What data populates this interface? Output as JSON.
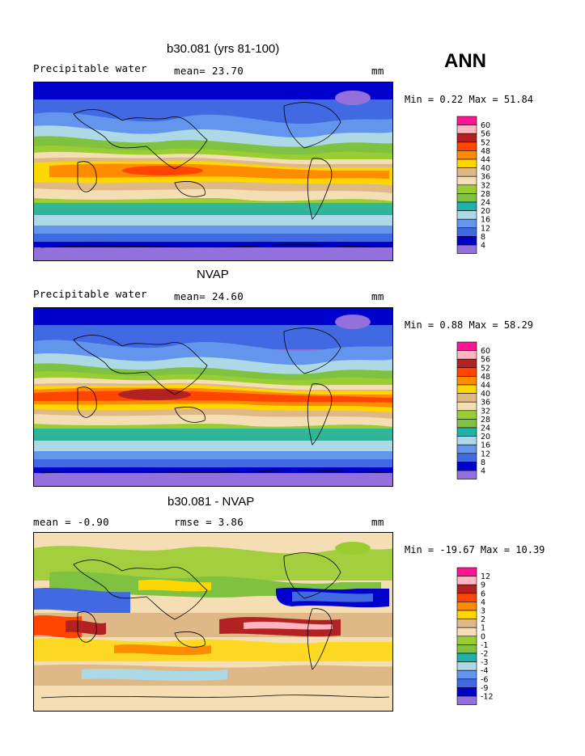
{
  "season": "ANN",
  "panels": [
    {
      "id": "model",
      "title": "b30.081 (yrs 81-100)",
      "left_label": "Precipitable water",
      "stat1": "mean=  23.70",
      "stat2": "",
      "units": "mm",
      "minmax": "Min =   0.22 Max =  51.84",
      "levels": [
        "60",
        "56",
        "52",
        "48",
        "44",
        "40",
        "36",
        "32",
        "28",
        "24",
        "20",
        "16",
        "12",
        "8",
        "4"
      ],
      "colors": [
        "#ff1493",
        "#ffb6c1",
        "#b22222",
        "#ff4500",
        "#ff8c00",
        "#ffd700",
        "#deb887",
        "#f5deb3",
        "#9acd32",
        "#7fc241",
        "#20b2aa",
        "#add8e6",
        "#6495ed",
        "#4169e1",
        "#0000cd",
        "#9370db"
      ]
    },
    {
      "id": "obs",
      "title": "NVAP",
      "left_label": "Precipitable water",
      "stat1": "mean=  24.60",
      "stat2": "",
      "units": "mm",
      "minmax": "Min =   0.88 Max =  58.29",
      "levels": [
        "60",
        "56",
        "52",
        "48",
        "44",
        "40",
        "36",
        "32",
        "28",
        "24",
        "20",
        "16",
        "12",
        "8",
        "4"
      ],
      "colors": [
        "#ff1493",
        "#ffb6c1",
        "#b22222",
        "#ff4500",
        "#ff8c00",
        "#ffd700",
        "#deb887",
        "#f5deb3",
        "#9acd32",
        "#7fc241",
        "#20b2aa",
        "#add8e6",
        "#6495ed",
        "#4169e1",
        "#0000cd",
        "#9370db"
      ]
    },
    {
      "id": "diff",
      "title": "b30.081 - NVAP",
      "left_label": "mean =  -0.90",
      "stat1": "rmse =   3.86",
      "stat2": "",
      "units": "mm",
      "minmax": "Min = -19.67 Max =  10.39",
      "levels": [
        "12",
        "9",
        "6",
        "4",
        "3",
        "2",
        "1",
        "0",
        "-1",
        "-2",
        "-3",
        "-4",
        "-6",
        "-9",
        "-12"
      ],
      "colors": [
        "#ff1493",
        "#ffb6c1",
        "#b22222",
        "#ff4500",
        "#ff8c00",
        "#ffd700",
        "#deb887",
        "#f5deb3",
        "#9acd32",
        "#7fc241",
        "#20b2aa",
        "#add8e6",
        "#6495ed",
        "#4169e1",
        "#0000cd",
        "#9370db"
      ]
    }
  ],
  "chart_data": [
    {
      "type": "heatmap",
      "title": "b30.081 (yrs 81-100)",
      "variable": "Precipitable water",
      "units": "mm",
      "mean": 23.7,
      "min": 0.22,
      "max": 51.84,
      "contour_levels": [
        4,
        8,
        12,
        16,
        20,
        24,
        28,
        32,
        36,
        40,
        44,
        48,
        52,
        56,
        60
      ]
    },
    {
      "type": "heatmap",
      "title": "NVAP",
      "variable": "Precipitable water",
      "units": "mm",
      "mean": 24.6,
      "min": 0.88,
      "max": 58.29,
      "contour_levels": [
        4,
        8,
        12,
        16,
        20,
        24,
        28,
        32,
        36,
        40,
        44,
        48,
        52,
        56,
        60
      ]
    },
    {
      "type": "heatmap",
      "title": "b30.081 - NVAP",
      "units": "mm",
      "mean": -0.9,
      "rmse": 3.86,
      "min": -19.67,
      "max": 10.39,
      "contour_levels": [
        -12,
        -9,
        -6,
        -4,
        -3,
        -2,
        -1,
        0,
        1,
        2,
        3,
        4,
        6,
        9,
        12
      ]
    }
  ]
}
